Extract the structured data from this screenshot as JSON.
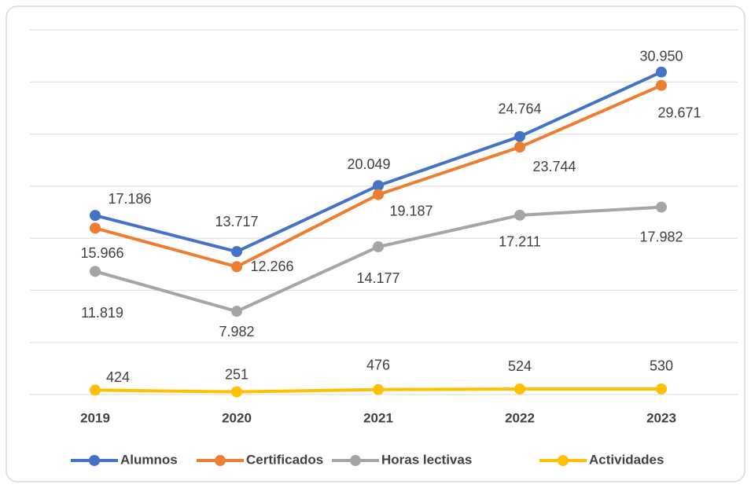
{
  "chart_data": {
    "type": "line",
    "categories": [
      "2019",
      "2020",
      "2021",
      "2022",
      "2023"
    ],
    "series": [
      {
        "name": "Alumnos",
        "color": "#4472c4",
        "values": [
          17186,
          13717,
          20049,
          24764,
          30950
        ],
        "value_labels": [
          "17.186",
          "13.717",
          "20.049",
          "24.764",
          "30.950"
        ]
      },
      {
        "name": "Certificados",
        "color": "#ed7d31",
        "values": [
          15966,
          12266,
          19187,
          23744,
          29671
        ],
        "value_labels": [
          "15.966",
          "12.266",
          "19.187",
          "23.744",
          "29.671"
        ]
      },
      {
        "name": "Horas lectivas",
        "color": "#a5a5a5",
        "values": [
          11819,
          7982,
          14177,
          17211,
          17982
        ],
        "value_labels": [
          "11.819",
          "7.982",
          "14.177",
          "17.211",
          "17.982"
        ]
      },
      {
        "name": "Actividades",
        "color": "#ffc000",
        "values": [
          424,
          251,
          476,
          524,
          530
        ],
        "value_labels": [
          "424",
          "251",
          "476",
          "524",
          "530"
        ]
      }
    ],
    "ylim": [
      0,
      35000
    ],
    "yticks": [
      0,
      5000,
      10000,
      15000,
      20000,
      25000,
      30000,
      35000
    ],
    "grid": true,
    "show_ytick_labels": false,
    "legend": "bottom"
  }
}
